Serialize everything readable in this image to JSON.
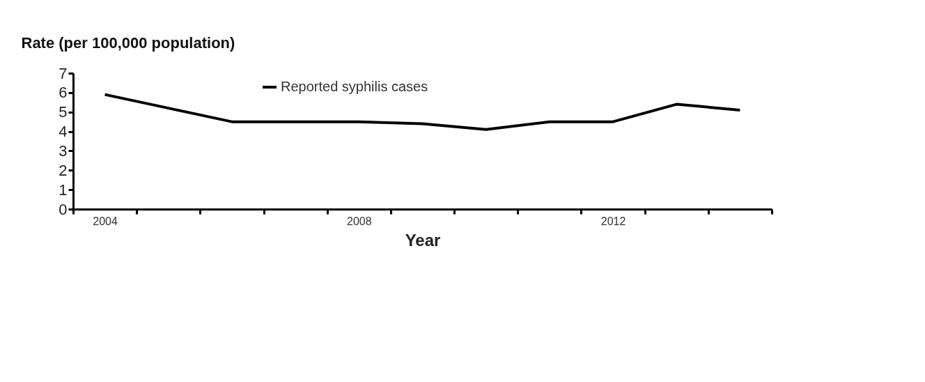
{
  "chart_data": {
    "type": "line",
    "ylabel": "Rate (per 100,000 population)",
    "xlabel": "Year",
    "categories": [
      "2004",
      null,
      null,
      null,
      "2008",
      null,
      null,
      null,
      "2012",
      null,
      null
    ],
    "series": [
      {
        "name": "Reported syphilis cases",
        "color": "#000000",
        "values": [
          5.9,
          5.2,
          4.5,
          4.5,
          4.5,
          4.4,
          4.1,
          4.5,
          4.5,
          5.4,
          5.1
        ]
      }
    ],
    "ylim": [
      0,
      7
    ],
    "yticks": [
      0,
      1,
      2,
      3,
      4,
      5,
      6,
      7
    ],
    "grid": false,
    "legend": "top",
    "marker": "none",
    "line_style": "solid"
  }
}
